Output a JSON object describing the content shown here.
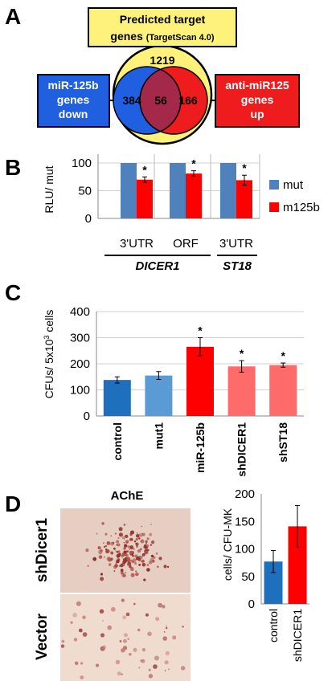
{
  "panels": {
    "a": "A",
    "b": "B",
    "c": "C",
    "d": "D"
  },
  "venn": {
    "top_box_line1": "Predicted target",
    "top_box_line2_main": "genes ",
    "top_box_line2_sub": "(TargetScan 4.0)",
    "total": "1219",
    "left_count": "384",
    "overlap_count": "56",
    "right_count": "166",
    "left_box": [
      "miR-125b",
      "genes",
      "down"
    ],
    "right_box": [
      "anti-miR125",
      "genes",
      "up"
    ],
    "colors": {
      "yellow": "#fff27a",
      "blue": "#1f5fe0",
      "red": "#ee1c1c",
      "overlap": "#a3284a"
    }
  },
  "chart_data": [
    {
      "panel": "B",
      "type": "bar",
      "categories": [
        "3'UTR",
        "ORF",
        "3'UTR"
      ],
      "group_labels": [
        "DICER1",
        "ST18"
      ],
      "series": [
        {
          "name": "mut",
          "values": [
            100,
            100,
            100
          ],
          "errors": [
            0,
            0,
            0
          ],
          "color": "#4f81bd"
        },
        {
          "name": "m125b",
          "values": [
            70,
            81,
            69
          ],
          "errors": [
            5,
            5,
            9
          ],
          "color": "#ff0000"
        }
      ],
      "significance": [
        "*",
        "*",
        "*"
      ],
      "ylabel": "RLU/ mut",
      "yticks": [
        0,
        50,
        100
      ],
      "ylim": [
        0,
        100
      ]
    },
    {
      "panel": "C",
      "type": "bar",
      "categories": [
        "control",
        "mut1",
        "miR-125b",
        "shDICER1",
        "shST18"
      ],
      "values": [
        138,
        155,
        265,
        190,
        195
      ],
      "errors": [
        12,
        15,
        35,
        22,
        8
      ],
      "colors": [
        "#1f6fbf",
        "#5b9bd5",
        "#ff0000",
        "#ff6b6b",
        "#ff6b6b"
      ],
      "significance": [
        "",
        "",
        "*",
        "*",
        "*"
      ],
      "ylabel_main": "CFUs/ 5x10",
      "ylabel_sup": "3",
      "ylabel_tail": " cells",
      "yticks": [
        0,
        100,
        200,
        300,
        400
      ],
      "ylim": [
        0,
        400
      ]
    },
    {
      "panel": "D",
      "type": "bar",
      "categories": [
        "control",
        "shDICER1"
      ],
      "values": [
        77,
        141
      ],
      "errors": [
        20,
        38
      ],
      "colors": [
        "#1f6fbf",
        "#ff0000"
      ],
      "ylabel": "cells/ CFU-MK",
      "yticks": [
        0,
        50,
        100,
        150,
        200
      ],
      "ylim": [
        0,
        200
      ]
    }
  ],
  "micrographs": {
    "stain": "AChE",
    "row_labels": [
      "shDicer1",
      "Vector"
    ]
  }
}
